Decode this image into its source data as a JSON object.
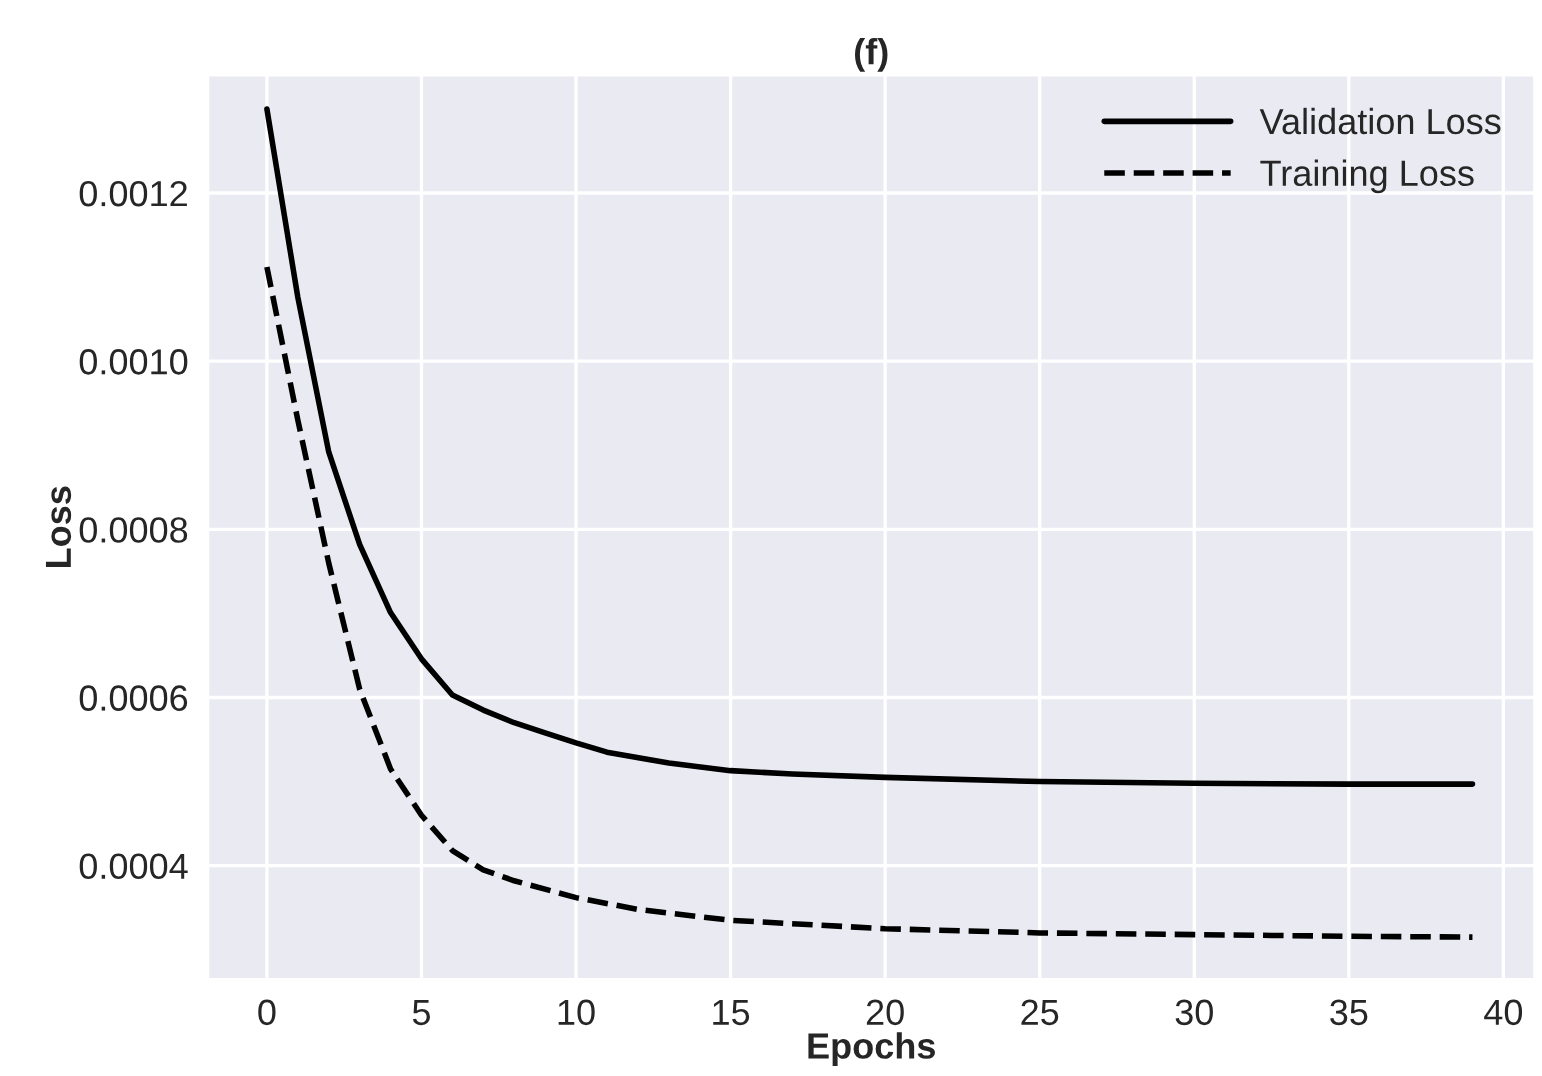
{
  "chart_data": {
    "type": "line",
    "title": "(f)",
    "xlabel": "Epochs",
    "ylabel": "Loss",
    "xlim": [
      -1.9,
      41
    ],
    "xticks": [
      0,
      5,
      10,
      15,
      20,
      25,
      30,
      35,
      40
    ],
    "ylim": [
      0.000265,
      0.00134
    ],
    "yticks": [
      {
        "value": 0.0004,
        "label": "0.0004"
      },
      {
        "value": 0.0006,
        "label": "0.0006"
      },
      {
        "value": 0.0008,
        "label": "0.0008"
      },
      {
        "value": 0.001,
        "label": "0.0010"
      },
      {
        "value": 0.0012,
        "label": "0.0012"
      }
    ],
    "grid": true,
    "legend": "top right",
    "series": [
      {
        "name": "Validation Loss",
        "color": "#000000",
        "line_style": "solid",
        "x": [
          0,
          1,
          2,
          3,
          4,
          5,
          6,
          7,
          8,
          9,
          10,
          11,
          13,
          15,
          17,
          20,
          25,
          30,
          35,
          39
        ],
        "values": [
          0.0013,
          0.001076,
          0.000892,
          0.000782,
          0.000701,
          0.000646,
          0.000603,
          0.000585,
          0.00057,
          0.000558,
          0.000546,
          0.000535,
          0.000522,
          0.000513,
          0.000509,
          0.000505,
          0.0005,
          0.000498,
          0.000497,
          0.000497
        ]
      },
      {
        "name": "Training Loss",
        "color": "#000000",
        "line_style": "dashed",
        "x": [
          0,
          1,
          2,
          3,
          4,
          5,
          6,
          7,
          8,
          10,
          12,
          15,
          20,
          25,
          30,
          35,
          39
        ],
        "values": [
          0.001112,
          0.00093,
          0.00076,
          0.00061,
          0.000515,
          0.00046,
          0.000418,
          0.000395,
          0.000382,
          0.000362,
          0.000348,
          0.000335,
          0.000325,
          0.00032,
          0.000318,
          0.000316,
          0.000315
        ]
      }
    ]
  }
}
